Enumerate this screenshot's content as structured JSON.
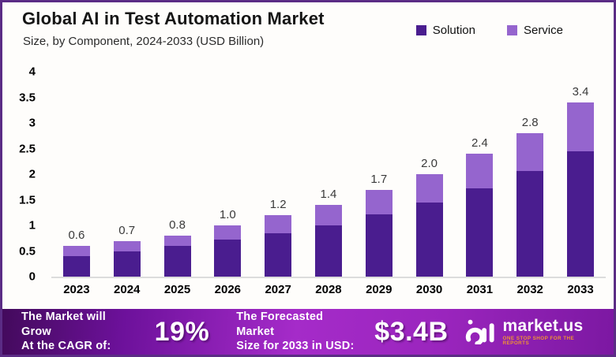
{
  "header": {
    "title": "Global AI in Test Automation Market",
    "subtitle": "Size, by Component, 2024-2033 (USD Billion)"
  },
  "legend": [
    {
      "label": "Solution",
      "color": "#4a1d8f"
    },
    {
      "label": "Service",
      "color": "#9565ce"
    }
  ],
  "chart_data": {
    "type": "bar",
    "stacked": true,
    "title": "Global AI in Test Automation Market",
    "subtitle": "Size, by Component, 2024-2033 (USD Billion)",
    "xlabel": "",
    "ylabel": "USD Billion",
    "ylim": [
      0,
      4
    ],
    "grid": false,
    "legend_position": "top-right",
    "categories": [
      "2023",
      "2024",
      "2025",
      "2026",
      "2027",
      "2028",
      "2029",
      "2030",
      "2031",
      "2032",
      "2033"
    ],
    "series": [
      {
        "name": "Solution",
        "color": "#4a1d8f",
        "values": [
          0.4,
          0.5,
          0.6,
          0.72,
          0.85,
          1.0,
          1.22,
          1.44,
          1.73,
          2.06,
          2.45
        ]
      },
      {
        "name": "Service",
        "color": "#9565ce",
        "values": [
          0.2,
          0.2,
          0.2,
          0.28,
          0.35,
          0.4,
          0.48,
          0.56,
          0.67,
          0.74,
          0.95
        ]
      }
    ],
    "totals_labels": [
      "0.6",
      "0.7",
      "0.8",
      "1.0",
      "1.2",
      "1.4",
      "1.7",
      "2.0",
      "2.4",
      "2.8",
      "3.4"
    ],
    "y_ticks": [
      "4",
      "3.5",
      "3",
      "2.5",
      "2",
      "1.5",
      "1",
      "0.5",
      "0"
    ]
  },
  "footer": {
    "cagr_line1": "The Market will Grow",
    "cagr_line2": "At the CAGR of:",
    "cagr_value": "19%",
    "forecast_line1": "The Forecasted Market",
    "forecast_line2": "Size for 2033 in USD:",
    "forecast_value": "$3.4B",
    "brand_name": "market.us",
    "brand_tagline": "ONE STOP SHOP FOR THE REPORTS"
  },
  "colors": {
    "solution": "#4a1d8f",
    "service": "#9565ce",
    "frame_border": "#5b2c85",
    "baseline": "#dcdcdc",
    "footer_gradient_start": "#430a5c",
    "footer_gradient_mid": "#a52bc9",
    "footer_gradient_end": "#7c18a2",
    "tagline_orange": "#ef9433"
  }
}
